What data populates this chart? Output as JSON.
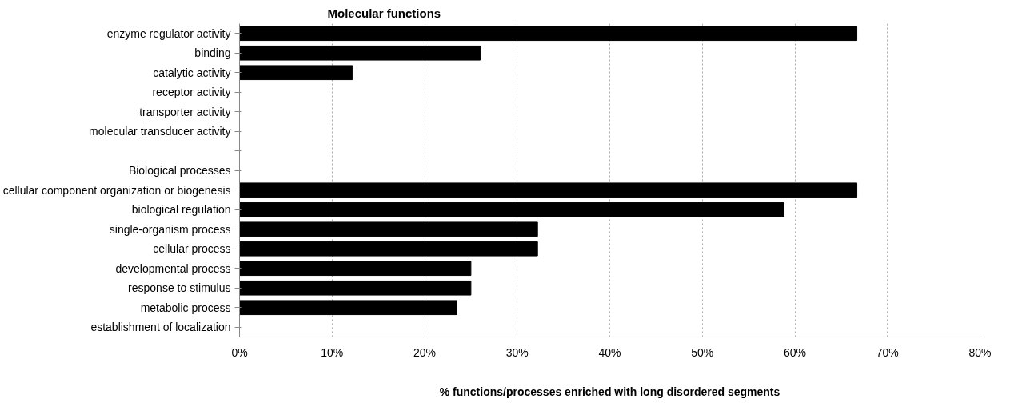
{
  "chart_data": {
    "type": "bar",
    "orientation": "horizontal",
    "title": "Molecular functions",
    "xlabel": "% functions/processes enriched with long disordered segments",
    "categories": [
      "enzyme regulator activity",
      "binding",
      "catalytic activity",
      "receptor activity",
      "transporter activity",
      "molecular transducer activity",
      null,
      "Biological processes",
      "cellular component organization or biogenesis",
      "biological regulation",
      "single-organism process",
      "cellular process",
      "developmental process",
      "response to stimulus",
      "metabolic process",
      "establishment of localization"
    ],
    "values": [
      66.7,
      26.0,
      12.2,
      0,
      0,
      0,
      null,
      null,
      66.7,
      58.8,
      32.2,
      32.2,
      25.0,
      25.0,
      23.5,
      0
    ],
    "color": "#000000",
    "xlim": [
      0,
      80
    ],
    "xticks": [
      {
        "value": 0,
        "label": "0%"
      },
      {
        "value": 10,
        "label": "10%"
      },
      {
        "value": 20,
        "label": "20%"
      },
      {
        "value": 30,
        "label": "30%"
      },
      {
        "value": 40,
        "label": "40%"
      },
      {
        "value": 50,
        "label": "50%"
      },
      {
        "value": 60,
        "label": "60%"
      },
      {
        "value": 70,
        "label": "70%"
      },
      {
        "value": 80,
        "label": "80%"
      }
    ],
    "grid": "x"
  }
}
